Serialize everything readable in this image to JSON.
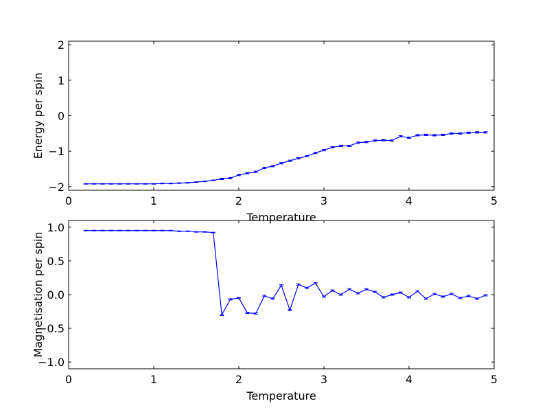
{
  "chart_data": [
    {
      "type": "line",
      "title": "",
      "xlabel": "Temperature",
      "ylabel": "Energy per spin",
      "xlim": [
        0,
        5
      ],
      "ylim": [
        -2.1,
        2.1
      ],
      "xticks": [
        "0",
        "1",
        "2",
        "3",
        "4",
        "5"
      ],
      "yticks": [
        "−2",
        "−1",
        "0",
        "1",
        "2"
      ],
      "xtick_values": [
        0,
        1,
        2,
        3,
        4,
        5
      ],
      "ytick_values": [
        -2,
        -1,
        0,
        1,
        2
      ],
      "line_color": "#0000ff",
      "grid": false,
      "error_bars": true,
      "series": [
        {
          "x": [
            0.2,
            0.3,
            0.4,
            0.5,
            0.6,
            0.7,
            0.8,
            0.9,
            1.0,
            1.1,
            1.2,
            1.3,
            1.4,
            1.5,
            1.6,
            1.7,
            1.8,
            1.9,
            2.0,
            2.1,
            2.2,
            2.3,
            2.4,
            2.5,
            2.6,
            2.7,
            2.8,
            2.9,
            3.0,
            3.1,
            3.2,
            3.3,
            3.4,
            3.5,
            3.6,
            3.7,
            3.8,
            3.9,
            4.0,
            4.1,
            4.2,
            4.3,
            4.4,
            4.5,
            4.6,
            4.7,
            4.8,
            4.9
          ],
          "y": [
            -1.92,
            -1.92,
            -1.92,
            -1.92,
            -1.92,
            -1.92,
            -1.92,
            -1.92,
            -1.92,
            -1.91,
            -1.91,
            -1.9,
            -1.89,
            -1.87,
            -1.85,
            -1.82,
            -1.78,
            -1.76,
            -1.67,
            -1.62,
            -1.58,
            -1.47,
            -1.42,
            -1.34,
            -1.27,
            -1.2,
            -1.14,
            -1.05,
            -0.97,
            -0.89,
            -0.85,
            -0.85,
            -0.76,
            -0.74,
            -0.7,
            -0.69,
            -0.7,
            -0.58,
            -0.62,
            -0.55,
            -0.54,
            -0.55,
            -0.54,
            -0.5,
            -0.5,
            -0.48,
            -0.47,
            -0.47
          ],
          "err": [
            0.01,
            0.01,
            0.01,
            0.01,
            0.01,
            0.01,
            0.01,
            0.01,
            0.01,
            0.01,
            0.01,
            0.01,
            0.01,
            0.01,
            0.01,
            0.01,
            0.02,
            0.02,
            0.02,
            0.02,
            0.02,
            0.02,
            0.02,
            0.02,
            0.02,
            0.02,
            0.02,
            0.02,
            0.02,
            0.02,
            0.02,
            0.02,
            0.02,
            0.02,
            0.02,
            0.02,
            0.02,
            0.02,
            0.02,
            0.02,
            0.02,
            0.02,
            0.02,
            0.02,
            0.02,
            0.02,
            0.02,
            0.02
          ]
        }
      ]
    },
    {
      "type": "line",
      "title": "",
      "xlabel": "Temperature",
      "ylabel": "Magnetisation per spin",
      "xlim": [
        0,
        5
      ],
      "ylim": [
        -1.1,
        1.1
      ],
      "xticks": [
        "0",
        "1",
        "2",
        "3",
        "4",
        "5"
      ],
      "yticks": [
        "−1.0",
        "−0.5",
        "0.0",
        "0.5",
        "1.0"
      ],
      "xtick_values": [
        0,
        1,
        2,
        3,
        4,
        5
      ],
      "ytick_values": [
        -1.0,
        -0.5,
        0.0,
        0.5,
        1.0
      ],
      "line_color": "#0000ff",
      "grid": false,
      "error_bars": true,
      "series": [
        {
          "x": [
            0.2,
            0.3,
            0.4,
            0.5,
            0.6,
            0.7,
            0.8,
            0.9,
            1.0,
            1.1,
            1.2,
            1.3,
            1.4,
            1.5,
            1.6,
            1.7,
            1.8,
            1.9,
            2.0,
            2.1,
            2.2,
            2.3,
            2.4,
            2.5,
            2.6,
            2.7,
            2.8,
            2.9,
            3.0,
            3.1,
            3.2,
            3.3,
            3.4,
            3.5,
            3.6,
            3.7,
            3.8,
            3.9,
            4.0,
            4.1,
            4.2,
            4.3,
            4.4,
            4.5,
            4.6,
            4.7,
            4.8,
            4.9
          ],
          "y": [
            0.95,
            0.95,
            0.95,
            0.95,
            0.95,
            0.95,
            0.95,
            0.95,
            0.95,
            0.95,
            0.95,
            0.94,
            0.94,
            0.93,
            0.93,
            0.92,
            -0.3,
            -0.07,
            -0.05,
            -0.27,
            -0.28,
            -0.02,
            -0.06,
            0.14,
            -0.23,
            0.15,
            0.1,
            0.17,
            -0.03,
            0.06,
            0.0,
            0.08,
            0.02,
            0.08,
            0.04,
            -0.04,
            0.0,
            0.03,
            -0.04,
            0.05,
            -0.06,
            0.01,
            -0.03,
            0.01,
            -0.05,
            -0.02,
            -0.06,
            -0.01
          ],
          "err": [
            0.005,
            0.005,
            0.005,
            0.005,
            0.005,
            0.005,
            0.005,
            0.005,
            0.005,
            0.005,
            0.005,
            0.005,
            0.005,
            0.005,
            0.005,
            0.005,
            0.01,
            0.01,
            0.01,
            0.01,
            0.01,
            0.01,
            0.01,
            0.01,
            0.01,
            0.01,
            0.01,
            0.01,
            0.01,
            0.01,
            0.01,
            0.01,
            0.01,
            0.01,
            0.01,
            0.01,
            0.01,
            0.01,
            0.01,
            0.01,
            0.01,
            0.01,
            0.01,
            0.01,
            0.01,
            0.01,
            0.01,
            0.01
          ]
        }
      ]
    }
  ]
}
